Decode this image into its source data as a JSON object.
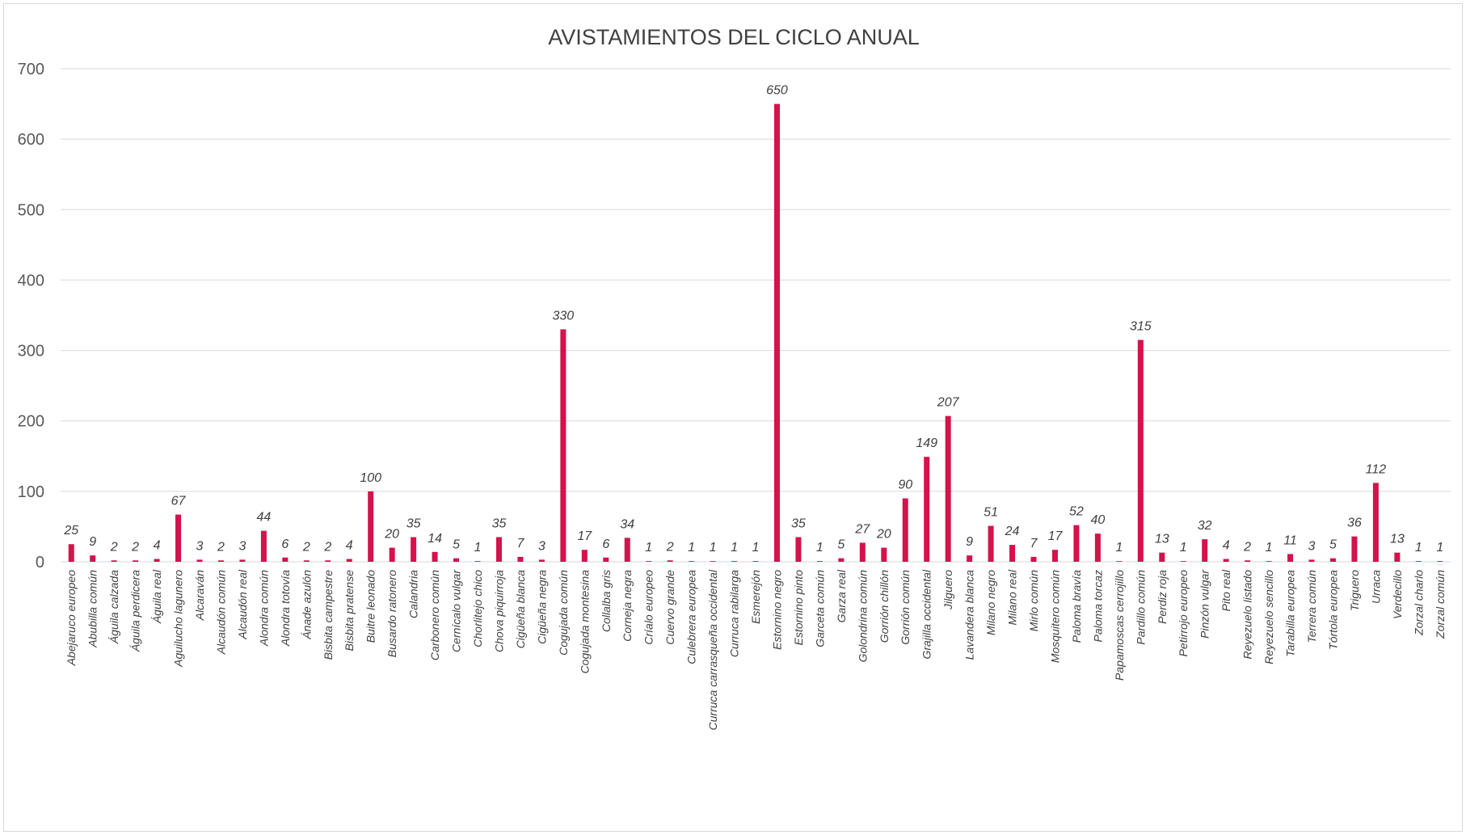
{
  "chart_data": {
    "type": "bar",
    "title": "AVISTAMIENTOS DEL CICLO ANUAL",
    "xlabel": "",
    "ylabel": "",
    "ylim": [
      0,
      700
    ],
    "yticks": [
      0,
      100,
      200,
      300,
      400,
      500,
      600,
      700
    ],
    "grid": true,
    "legend": "none",
    "bar_color": "#d4124b",
    "categories": [
      "Abejaruco europeo",
      "Abubilla común",
      "Águila calzada",
      "Águila perdicera",
      "Águila real",
      "Aguilucho lagunero",
      "Alcaraván",
      "Alcaudón común",
      "Alcaudón real",
      "Alondra común",
      "Alondra totovía",
      "Ánade azulón",
      "Bisbita campestre",
      "Bisbita pratense",
      "Buitre leonado",
      "Busardo ratonero",
      "Calandria",
      "Carbonero común",
      "Cernícalo vulgar",
      "Chorlitejo chico",
      "Chova piquirroja",
      "Cigüeña blanca",
      "Cigüeña negra",
      "Cogujada común",
      "Cogujada montesina",
      "Collalba gris",
      "Corneja negra",
      "Críalo europeo",
      "Cuervo grande",
      "Culebrera europea",
      "Curruca carrasqueña occidental",
      "Curruca rabilarga",
      "Esmerejón",
      "Estornino negro",
      "Estornino pinto",
      "Garceta común",
      "Garza real",
      "Golondrina común",
      "Gorrión chillón",
      "Gorrión común",
      "Grajilla occidental",
      "Jilguero",
      "Lavandera blanca",
      "Milano negro",
      "Milano real",
      "Mirlo común",
      "Mosquitero común",
      "Paloma bravía",
      "Paloma torcaz",
      "Papamoscas cerrojillo",
      "Pardillo común",
      "Perdiz roja",
      "Petirrojo europeo",
      "Pinzón vulgar",
      "Pito real",
      "Reyezuelo listado",
      "Reyezuelo sencillo",
      "Tarabilla europea",
      "Terrera común",
      "Tórtola europea",
      "Triguero",
      "Urraca",
      "Verdecillo",
      "Zorzal charlo",
      "Zorzal común"
    ],
    "values": [
      25,
      9,
      2,
      2,
      4,
      67,
      3,
      2,
      3,
      44,
      6,
      2,
      2,
      4,
      100,
      20,
      35,
      14,
      5,
      1,
      35,
      7,
      3,
      330,
      17,
      6,
      34,
      1,
      2,
      1,
      1,
      1,
      1,
      650,
      35,
      1,
      5,
      27,
      20,
      90,
      149,
      207,
      9,
      51,
      24,
      7,
      17,
      52,
      40,
      1,
      315,
      13,
      1,
      32,
      4,
      2,
      1,
      11,
      3,
      5,
      36,
      112,
      13,
      1,
      1
    ]
  }
}
